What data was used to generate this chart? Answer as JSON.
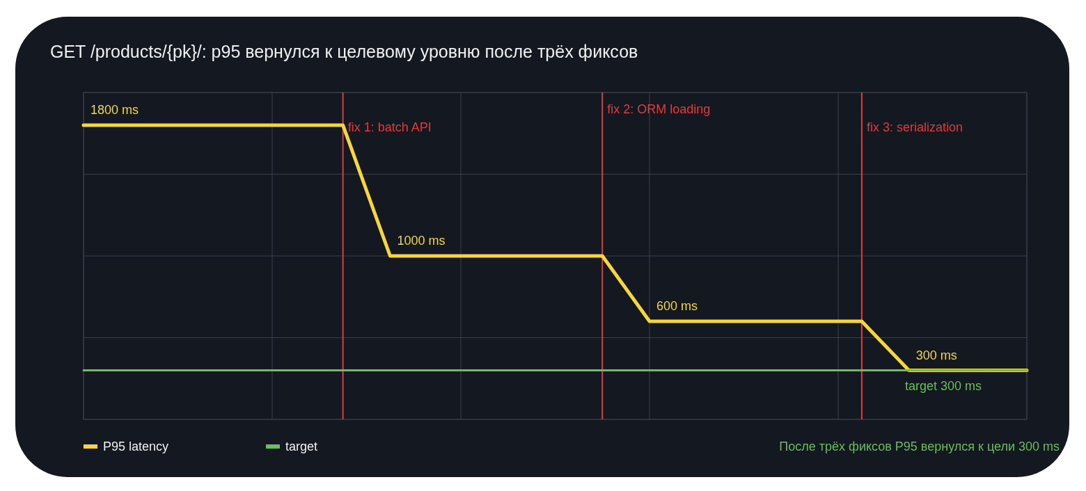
{
  "chart_data": {
    "type": "line",
    "title": "GET /products/{pk}/: p95 вернулся к целевому уровню после трёх фиксов",
    "categories": [
      null,
      null,
      null,
      null,
      null,
      null,
      null,
      null,
      null,
      null,
      null,
      null,
      null,
      null,
      null,
      null,
      null,
      null,
      null,
      null,
      null,
      null,
      null,
      null,
      null,
      null,
      null,
      null,
      null,
      null,
      null,
      null,
      null,
      null,
      null,
      null,
      null,
      null,
      null,
      null,
      null
    ],
    "ylim": [
      0,
      2000
    ],
    "yticks": [
      {
        "value": 0,
        "label": null
      },
      {
        "value": 500,
        "label": null
      },
      {
        "value": 1000,
        "label": null
      },
      {
        "value": 1500,
        "label": null
      },
      {
        "value": 2000,
        "label": null
      }
    ],
    "grid": true,
    "legend": "bottom left",
    "marker": "none",
    "line_style": "solid",
    "series": [
      {
        "name": "P95 latency",
        "color": "#f5d63d",
        "values": [
          1800,
          1800,
          1800,
          1800,
          1800,
          1800,
          1800,
          1800,
          1800,
          1800,
          1800,
          1800,
          1400,
          1000,
          1000,
          1000,
          1000,
          1000,
          1000,
          1000,
          1000,
          1000,
          1000,
          800,
          600,
          600,
          600,
          600,
          600,
          600,
          600,
          600,
          600,
          600,
          450,
          300,
          300,
          300,
          300,
          300,
          300
        ],
        "value_labels": [
          "1800 ms",
          null,
          null,
          null,
          null,
          null,
          null,
          null,
          null,
          null,
          null,
          null,
          null,
          "1000 ms",
          null,
          null,
          null,
          null,
          null,
          null,
          null,
          null,
          null,
          null,
          "600 ms",
          null,
          null,
          null,
          null,
          null,
          null,
          null,
          null,
          null,
          null,
          "300 ms",
          null,
          null,
          null,
          null,
          null
        ]
      },
      {
        "name": "target",
        "color": "#6abf5b",
        "values": [
          300,
          300,
          300,
          300,
          300,
          300,
          300,
          300,
          300,
          300,
          300,
          300,
          300,
          300,
          300,
          300,
          300,
          300,
          300,
          300,
          300,
          300,
          300,
          300,
          300,
          300,
          300,
          300,
          300,
          300,
          300,
          300,
          300,
          300,
          300,
          300,
          300,
          300,
          300,
          300,
          300
        ]
      }
    ],
    "annotations": [
      "fix 1: batch API",
      "fix 2: ORM loading",
      "fix 3: serialization",
      {
        "text": "target 300 ms",
        "y": 300
      },
      "После трёх фиксов P95 вернулся к цели 300 ms"
    ]
  }
}
